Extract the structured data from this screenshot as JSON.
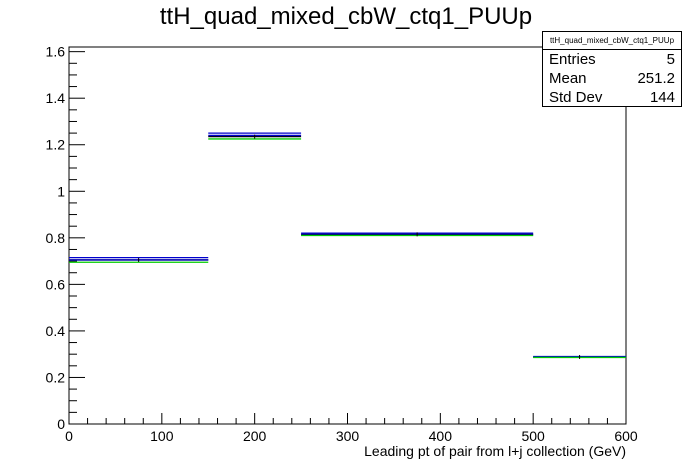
{
  "chart_data": {
    "type": "histogram",
    "title": "ttH_quad_mixed_cbW_ctq1_PUUp",
    "xlabel": "Leading pt of pair from l+j collection (GeV)",
    "ylabel": "",
    "xlim": [
      0,
      600
    ],
    "ylim": [
      0,
      1.62
    ],
    "x_ticks": [
      "0",
      "100",
      "200",
      "300",
      "400",
      "500",
      "600"
    ],
    "y_ticks": [
      "0",
      "0.2",
      "0.4",
      "0.6",
      "0.8",
      "1",
      "1.2",
      "1.4",
      "1.6"
    ],
    "bins": [
      {
        "low": 0,
        "high": 150
      },
      {
        "low": 150,
        "high": 250
      },
      {
        "low": 250,
        "high": 500
      },
      {
        "low": 500,
        "high": 600
      }
    ],
    "series": [
      {
        "color": "#000000",
        "values": [
          0.705,
          1.235,
          0.815,
          0.288
        ]
      },
      {
        "color": "#0000cc",
        "values": [
          0.715,
          1.25,
          0.82,
          0.29
        ]
      },
      {
        "color": "#0000cc",
        "values": [
          0.705,
          1.24,
          0.812,
          0.287
        ]
      },
      {
        "color": "#00cc00",
        "values": [
          0.695,
          1.225,
          0.81,
          0.286
        ]
      }
    ],
    "grid": false,
    "legend": "none"
  },
  "stats": {
    "name": "ttH_quad_mixed_cbW_ctq1_PUUp",
    "rows": [
      {
        "label": "Entries",
        "value": "5"
      },
      {
        "label": "Mean",
        "value": "251.2"
      },
      {
        "label": "Std Dev",
        "value": "144"
      }
    ]
  }
}
